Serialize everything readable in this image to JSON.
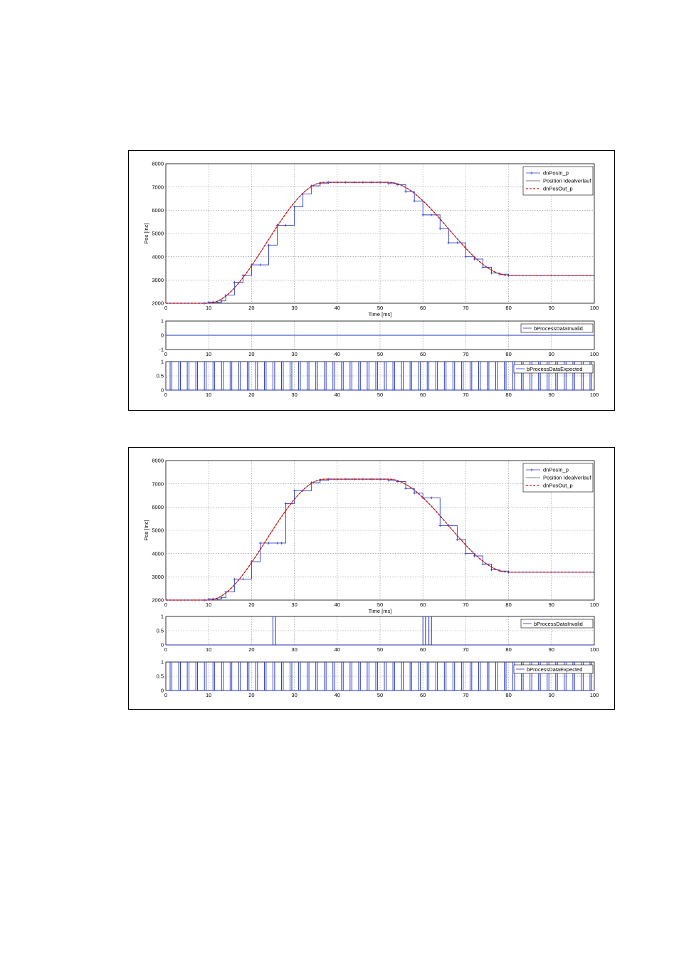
{
  "colors": {
    "pos_in": "#2b3cc9",
    "ideal": "#555555",
    "pos_out": "#d21414",
    "flags": "#1f2fbf",
    "grid": "#888888"
  },
  "figures": [
    {
      "name": "figure-1",
      "pos_panel": {
        "ylabel": "Pos [Inc]",
        "xlabel": "Time [ms]",
        "yticks": [
          "2000",
          "3000",
          "4000",
          "5000",
          "6000",
          "7000",
          "8000"
        ],
        "xticks": [
          "0",
          "10",
          "20",
          "30",
          "40",
          "50",
          "60",
          "70",
          "80",
          "90",
          "100"
        ],
        "legend": [
          "dnPosIn_p",
          "Position Idealverlauf",
          "dnPosOut_p"
        ]
      },
      "invalid_panel": {
        "yticks": [
          "-1",
          "0",
          "1"
        ],
        "xticks": [
          "0",
          "10",
          "20",
          "30",
          "40",
          "50",
          "60",
          "70",
          "80",
          "90",
          "100"
        ],
        "legend": "bProcessDataInvalid"
      },
      "expected_panel": {
        "yticks": [
          "0",
          "0.5",
          "1"
        ],
        "xticks": [
          "0",
          "10",
          "20",
          "30",
          "40",
          "50",
          "60",
          "70",
          "80",
          "90",
          "100"
        ],
        "legend": "bProcessDataExpected"
      }
    },
    {
      "name": "figure-2",
      "pos_panel": {
        "ylabel": "Pos [Inc]",
        "xlabel": "Time [ms]",
        "yticks": [
          "2000",
          "3000",
          "4000",
          "5000",
          "6000",
          "7000",
          "8000"
        ],
        "xticks": [
          "0",
          "10",
          "20",
          "30",
          "40",
          "50",
          "60",
          "70",
          "80",
          "90",
          "100"
        ],
        "legend": [
          "dnPosIn_p",
          "Position Idealverlauf",
          "dnPosOut_p"
        ]
      },
      "invalid_panel": {
        "yticks": [
          "0",
          "0.5",
          "1"
        ],
        "xticks": [
          "0",
          "10",
          "20",
          "30",
          "40",
          "50",
          "60",
          "70",
          "80",
          "90",
          "100"
        ],
        "legend": "bProcessDataInvalid"
      },
      "expected_panel": {
        "yticks": [
          "0",
          "0.5",
          "1"
        ],
        "xticks": [
          "0",
          "10",
          "20",
          "30",
          "40",
          "50",
          "60",
          "70",
          "80",
          "90",
          "100"
        ],
        "legend": "bProcessDataExpected"
      }
    }
  ],
  "chart_data": [
    {
      "type": "line",
      "figure": "figure-1",
      "panel": "position",
      "xlabel": "Time [ms]",
      "ylabel": "Pos [Inc]",
      "xlim": [
        0,
        100
      ],
      "ylim": [
        2000,
        8000
      ],
      "grid": true,
      "legend_position": "top-right",
      "ideal_profile": {
        "start_ms": 10,
        "end_ms": 37,
        "hold_end_ms": 52,
        "fall_end_ms": 80,
        "start_value": 2000,
        "peak_value": 7200,
        "end_value": 3200
      },
      "series": [
        {
          "name": "dnPosIn_p",
          "style": "step with markers",
          "x": [
            0,
            9,
            10,
            11,
            12,
            13,
            14,
            16,
            18,
            20,
            22,
            24,
            26,
            28,
            30,
            32,
            34,
            36,
            38,
            40,
            42,
            44,
            46,
            48,
            50,
            52,
            54,
            56,
            58,
            60,
            62,
            64,
            66,
            68,
            70,
            72,
            74,
            76,
            78,
            80,
            100
          ],
          "y": [
            2000,
            2000,
            2050,
            2050,
            2050,
            2100,
            2350,
            2900,
            3200,
            3650,
            3650,
            4500,
            5350,
            5350,
            6150,
            6700,
            7050,
            7150,
            7200,
            7200,
            7200,
            7200,
            7200,
            7200,
            7200,
            7150,
            7100,
            6800,
            6400,
            5800,
            5800,
            5200,
            4600,
            4600,
            4000,
            3900,
            3550,
            3300,
            3250,
            3200,
            3200
          ]
        },
        {
          "name": "Position Idealverlauf",
          "style": "thin solid"
        },
        {
          "name": "dnPosOut_p",
          "style": "red dashed"
        }
      ]
    },
    {
      "type": "line",
      "figure": "figure-1",
      "panel": "invalid",
      "xlim": [
        0,
        100
      ],
      "ylim": [
        -1,
        1
      ],
      "series": [
        {
          "name": "bProcessDataInvalid",
          "x": [
            0,
            100
          ],
          "y": [
            0,
            0
          ]
        }
      ]
    },
    {
      "type": "line",
      "figure": "figure-1",
      "panel": "expected",
      "xlim": [
        0,
        100
      ],
      "ylim": [
        0,
        1
      ],
      "series": [
        {
          "name": "bProcessDataExpected",
          "style": "pulse train, period 2 ms, high from odd ms to odd ms + 0.4",
          "period_ms": 2,
          "high_ms": 0.4,
          "first_pulse_ms": 1
        }
      ]
    },
    {
      "type": "line",
      "figure": "figure-2",
      "panel": "position",
      "xlabel": "Time [ms]",
      "ylabel": "Pos [Inc]",
      "xlim": [
        0,
        100
      ],
      "ylim": [
        2000,
        8000
      ],
      "grid": true,
      "legend_position": "top-right",
      "ideal_profile": {
        "start_ms": 10,
        "end_ms": 37,
        "hold_end_ms": 52,
        "fall_end_ms": 80,
        "start_value": 2000,
        "peak_value": 7200,
        "end_value": 3200
      },
      "series": [
        {
          "name": "dnPosIn_p",
          "style": "step with markers",
          "x": [
            0,
            9,
            10,
            11,
            12,
            13,
            14,
            16,
            18,
            20,
            22,
            24,
            26,
            27,
            28,
            30,
            32,
            34,
            36,
            38,
            40,
            42,
            44,
            46,
            48,
            50,
            52,
            54,
            56,
            58,
            60,
            62,
            64,
            66,
            68,
            70,
            72,
            74,
            76,
            78,
            80,
            100
          ],
          "y": [
            2000,
            2000,
            2050,
            2050,
            2050,
            2100,
            2350,
            2900,
            2900,
            3650,
            4450,
            4450,
            4450,
            4450,
            6150,
            6700,
            6700,
            7050,
            7150,
            7200,
            7200,
            7200,
            7200,
            7200,
            7200,
            7200,
            7150,
            7100,
            6800,
            6600,
            6400,
            6400,
            5200,
            5200,
            4600,
            4000,
            3900,
            3550,
            3300,
            3250,
            3200,
            3200
          ]
        },
        {
          "name": "Position Idealverlauf",
          "style": "thin solid"
        },
        {
          "name": "dnPosOut_p",
          "style": "red dashed"
        }
      ]
    },
    {
      "type": "line",
      "figure": "figure-2",
      "panel": "invalid",
      "xlim": [
        0,
        100
      ],
      "ylim": [
        0,
        1
      ],
      "series": [
        {
          "name": "bProcessDataInvalid",
          "x": [
            0,
            25,
            25,
            25.6,
            25.6,
            60,
            60,
            60.6,
            60.6,
            61.4,
            61.4,
            62,
            62,
            100
          ],
          "y": [
            0,
            0,
            1,
            1,
            0,
            0,
            1,
            1,
            0,
            0,
            1,
            1,
            0,
            0
          ]
        }
      ]
    },
    {
      "type": "line",
      "figure": "figure-2",
      "panel": "expected",
      "xlim": [
        0,
        100
      ],
      "ylim": [
        0,
        1
      ],
      "series": [
        {
          "name": "bProcessDataExpected",
          "style": "pulse train, period 2 ms, high from odd ms to odd ms + 0.4",
          "period_ms": 2,
          "high_ms": 0.4,
          "first_pulse_ms": 1
        }
      ]
    }
  ]
}
